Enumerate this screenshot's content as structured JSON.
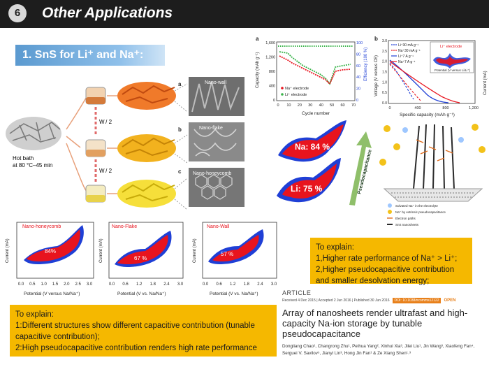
{
  "header": {
    "badge": "6",
    "title": "Other Applications"
  },
  "section": {
    "heading": "1. SnS for Li⁺ and Na⁺:"
  },
  "synthesis": {
    "hot_bath": "Hot bath",
    "condition": "at 80 °C–45 min",
    "step1": "W / 2",
    "step2": "W / 2",
    "labels": [
      "a",
      "b",
      "c"
    ],
    "morphologies": [
      "Nano-wall",
      "Nano-flake",
      "Nano-honeycomb"
    ]
  },
  "plot_a": {
    "letter": "a",
    "ylabel": "Capacity (mAh g⁻¹)",
    "ylabel2": "Efficiency (100 %)",
    "xlabel": "Cycle number",
    "yticks": [
      "0",
      "400",
      "800",
      "1,200",
      "1,600"
    ],
    "xticks": [
      "0",
      "10",
      "20",
      "30",
      "40",
      "50",
      "60",
      "70"
    ],
    "y2ticks": [
      "100",
      "80",
      "60",
      "40",
      "20",
      "0"
    ],
    "legend": [
      "Na⁺ electrode",
      "Li⁺ electrode"
    ]
  },
  "plot_b": {
    "letter": "b",
    "ylabel": "Voltage (V versus CE)",
    "ylabel2": "Current (mA)",
    "xlabel": "Specific capacity (mAh g⁻¹)",
    "xticks": [
      "0",
      "400",
      "800",
      "1,200"
    ],
    "yticks": [
      "0.0",
      "0.5",
      "1.0",
      "1.5",
      "2.0",
      "2.5",
      "3.0"
    ],
    "legend": [
      "Li⁺30 mA g⁻¹",
      "Na⁺30 mA g⁻¹",
      "Li⁺7 A g⁻¹",
      "Na⁺7 A g⁻¹"
    ],
    "inset_label": "Li⁺ electrode",
    "inset_xlabel": "Potential (V versus Li/Li⁺)"
  },
  "contribution": {
    "na": "Na: 84 %",
    "li": "Li: 75 %",
    "arrow": "Pseudocapacitance"
  },
  "schematic_legend": [
    "Solvated Na⁺ in the electrolyte",
    "Na⁺ by extrinsic pseudocapacitance",
    "Electron paths",
    "SnS nanosheets"
  ],
  "cv": [
    {
      "name": "Nano-honeycomb",
      "pct": "84%",
      "xlabel": "Potential (V versus Na/Na⁺)",
      "ylabel": "Current (mA)",
      "xticks": [
        "0.0",
        "0.5",
        "1.0",
        "1.5",
        "2.0",
        "2.5",
        "3.0"
      ]
    },
    {
      "name": "Nano-Flake",
      "pct": "67 %",
      "xlabel": "Potential (V vs. Na/Na⁺)",
      "ylabel": "Current (mA)",
      "xticks": [
        "0.0",
        "0.6",
        "1.2",
        "1.8",
        "2.4",
        "3.0"
      ]
    },
    {
      "name": "Nano-Wall",
      "pct": "57 %",
      "xlabel": "Potential (V vs. Na/Na⁺)",
      "ylabel": "Current (mA)",
      "xticks": [
        "0.0",
        "0.6",
        "1.2",
        "1.8",
        "2.4",
        "3.0"
      ]
    }
  ],
  "explain_right": {
    "heading": "To explain:",
    "lines": [
      "1,Higher rate performance of Na⁺ > Li⁺;",
      "2,Higher pseudocapacitive contribution and smaller desolvation energy;"
    ]
  },
  "explain_bottom": {
    "heading": "To explain:",
    "lines": [
      "1:Different structures show different capacitive contribution (tunable capacitive contribution);",
      "2:High pseudocapacitive contribution renders high rate performance"
    ]
  },
  "article": {
    "type": "ARTICLE",
    "dates": "Received 4 Dec 2015 | Accepted 2 Jun 2016 | Published 30 Jun 2016",
    "doi": "DOI: 10.1038/ncomms12122",
    "open": "OPEN",
    "title": "Array of nanosheets render ultrafast and high-capacity Na-ion storage by tunable pseudocapacitance",
    "authors": "Dongliang Chao¹, Changrong Zhu¹, Peihua Yang², Xinhui Xia³, Jilei Liu¹, Jin Wang³, Xiaofeng Fan⁴, Serguei V. Savilov⁵, Jianyi Lin³, Hong Jin Fan¹ & Ze Xiang Shen¹˒³"
  },
  "colors": {
    "header": "#1d1d1d",
    "accent": "#f5b800",
    "red": "#e8141e",
    "blue": "#1f3fd6"
  }
}
